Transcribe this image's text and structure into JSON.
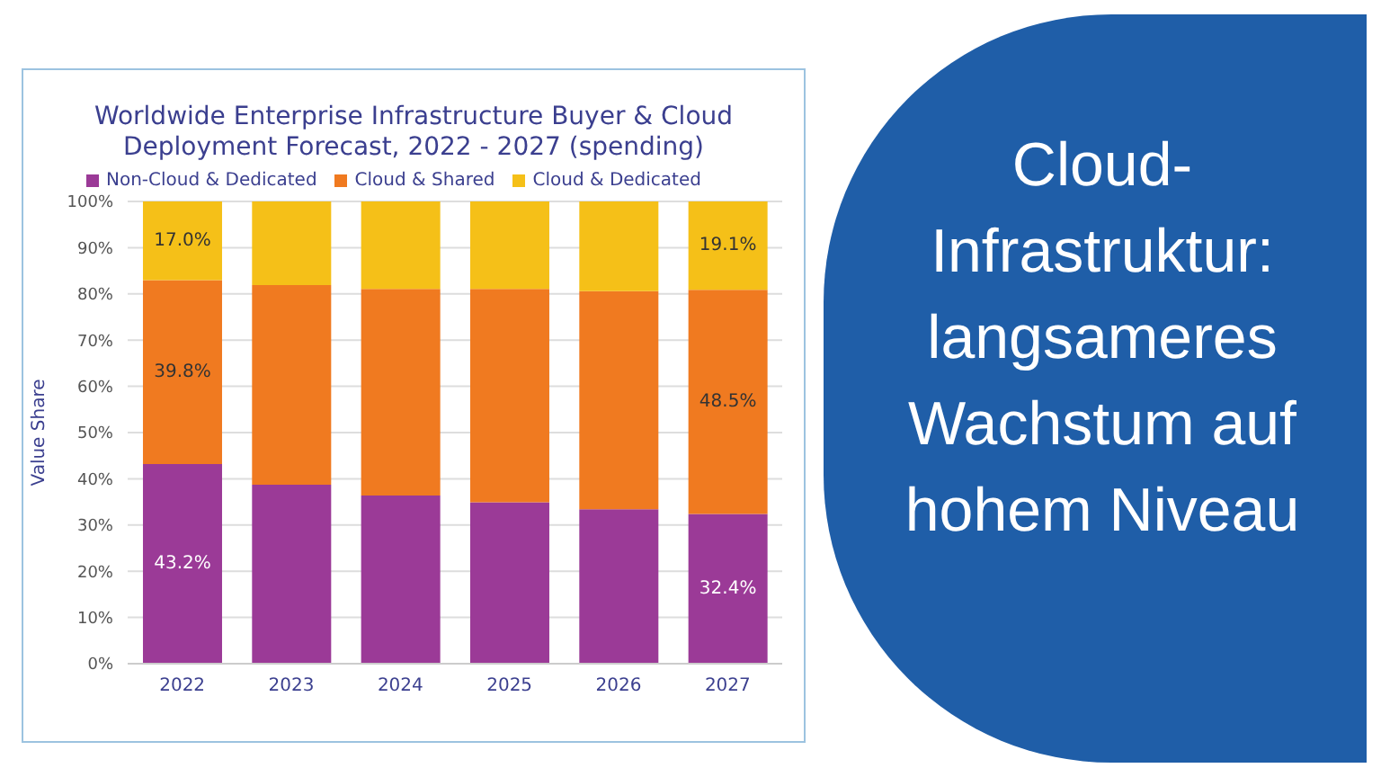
{
  "chart_data": {
    "type": "bar",
    "title": "Worldwide Enterprise Infrastructure Buyer & Cloud Deployment Forecast, 2022 - 2027 (spending)",
    "ylabel": "Value  Share",
    "annotations": [
      "Cloud-Infrastruktur: langsameres Wachstum auf hohem Niveau"
    ],
    "categories": [
      "2022",
      "2023",
      "2024",
      "2025",
      "2026",
      "2027"
    ],
    "stacked": true,
    "series": [
      {
        "name": "Non-Cloud & Dedicated",
        "color": "#9b3a97",
        "values": [
          43.2,
          38.7,
          36.4,
          34.9,
          33.4,
          32.4
        ],
        "value_labels": [
          "43.2%",
          null,
          null,
          null,
          null,
          "32.4%"
        ]
      },
      {
        "name": "Cloud & Shared",
        "color": "#f07a20",
        "values": [
          39.8,
          43.2,
          44.7,
          46.2,
          47.2,
          48.5
        ],
        "value_labels": [
          "39.8%",
          null,
          null,
          null,
          null,
          "48.5%"
        ]
      },
      {
        "name": "Cloud & Dedicated",
        "color": "#f5c018",
        "values": [
          17.0,
          18.1,
          18.9,
          18.9,
          19.4,
          19.1
        ],
        "value_labels": [
          "17.0%",
          null,
          null,
          null,
          null,
          "19.1%"
        ]
      }
    ],
    "ylim": [
      0,
      100
    ],
    "yticks": [
      {
        "value": 0,
        "label": "0%"
      },
      {
        "value": 10,
        "label": "10%"
      },
      {
        "value": 20,
        "label": "20%"
      },
      {
        "value": 30,
        "label": "30%"
      },
      {
        "value": 40,
        "label": "40%"
      },
      {
        "value": 50,
        "label": "50%"
      },
      {
        "value": 60,
        "label": "60%"
      },
      {
        "value": 70,
        "label": "70%"
      },
      {
        "value": 80,
        "label": "80%"
      },
      {
        "value": 90,
        "label": "90%"
      },
      {
        "value": 100,
        "label": "100%"
      }
    ],
    "grid": "y",
    "legend": "top"
  }
}
